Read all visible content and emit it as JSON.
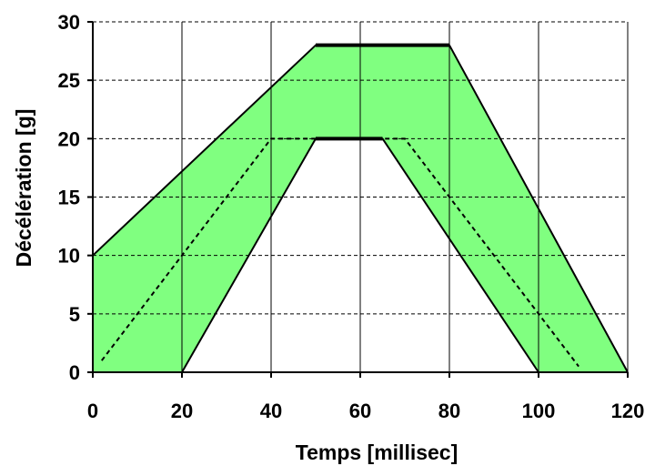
{
  "chart_data": {
    "type": "area",
    "title": "",
    "xlabel": "Temps [millisec]",
    "ylabel": "Décélération [g]",
    "xlim": [
      0,
      120
    ],
    "ylim": [
      0,
      30
    ],
    "x_ticks": [
      0,
      20,
      40,
      60,
      80,
      100,
      120
    ],
    "y_ticks": [
      0,
      5,
      10,
      15,
      20,
      25,
      30
    ],
    "x_tick_labels": [
      "0",
      "20",
      "40",
      "60",
      "80",
      "100",
      "120"
    ],
    "y_tick_labels": [
      "0",
      "5",
      "10",
      "15",
      "20",
      "25",
      "30"
    ],
    "grid": {
      "x": "solid",
      "y": "dashed"
    },
    "fill_color": "#80ff80",
    "series": [
      {
        "role": "upper-bound",
        "style": "solid",
        "points": [
          [
            0,
            10
          ],
          [
            50,
            28
          ],
          [
            80,
            28
          ],
          [
            120,
            0
          ]
        ]
      },
      {
        "role": "lower-bound",
        "style": "solid",
        "points": [
          [
            20,
            0
          ],
          [
            50,
            20
          ],
          [
            65,
            20
          ],
          [
            100,
            0
          ]
        ]
      },
      {
        "role": "nominal",
        "style": "dashed",
        "points": [
          [
            2,
            1
          ],
          [
            40,
            20
          ],
          [
            70,
            20
          ],
          [
            109,
            0.5
          ]
        ]
      }
    ]
  }
}
